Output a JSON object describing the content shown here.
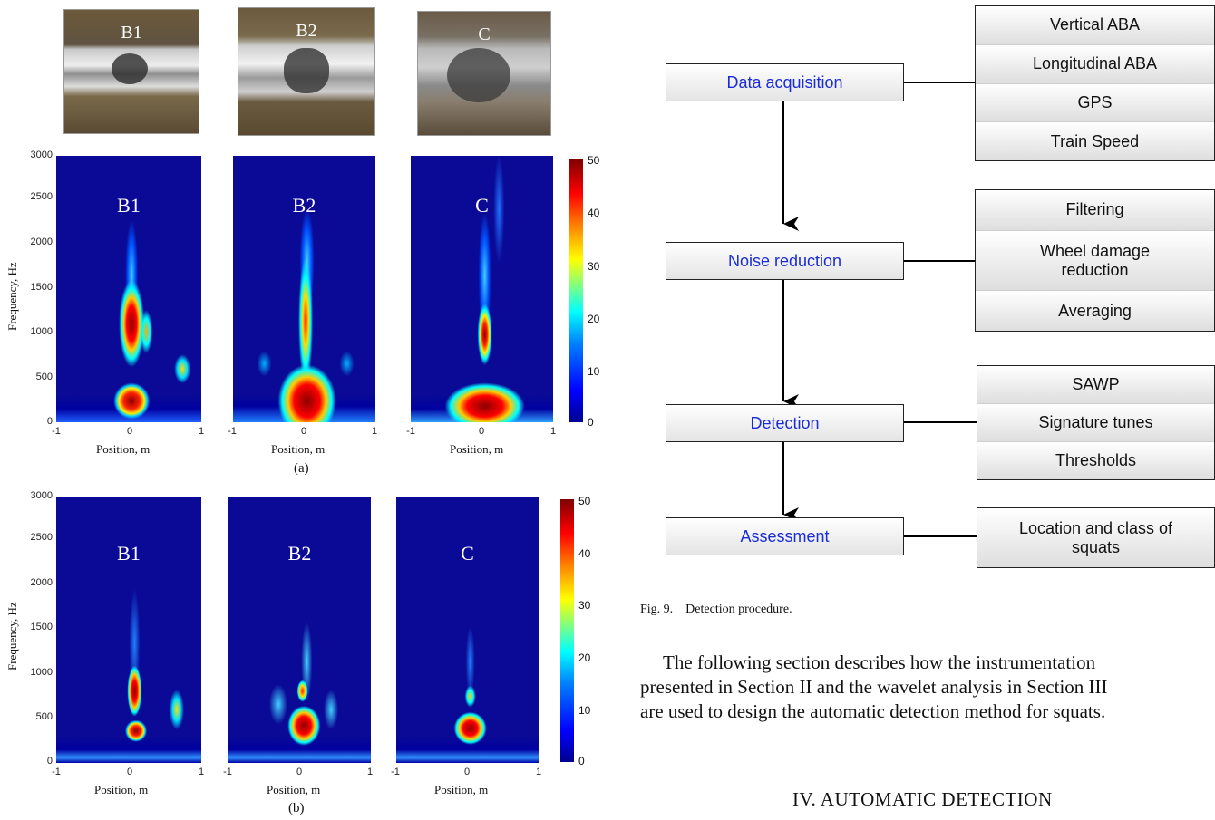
{
  "photos": [
    "B1",
    "B2",
    "C"
  ],
  "panels": {
    "a": {
      "labels": [
        "B1",
        "B2",
        "C"
      ],
      "colorbar_ticks": [
        "50",
        "40",
        "30",
        "20",
        "10",
        "0"
      ],
      "label": "(a)"
    },
    "b": {
      "labels": [
        "B1",
        "B2",
        "C"
      ],
      "colorbar_ticks": [
        "50",
        "40",
        "30",
        "20",
        "10",
        "0"
      ],
      "label": "(b)"
    }
  },
  "axes": {
    "ylabel": "Frequency, Hz",
    "xlabel": "Position, m",
    "yticks": [
      "3000",
      "2500",
      "2000",
      "1500",
      "1000",
      "500",
      "0"
    ],
    "xticks": [
      "-1",
      "0",
      "1"
    ]
  },
  "flow": {
    "steps": [
      {
        "label": "Data acquisition",
        "items": [
          "Vertical ABA",
          "Longitudinal ABA",
          "GPS",
          "Train Speed"
        ]
      },
      {
        "label": "Noise reduction",
        "items": [
          "Filtering",
          "Wheel damage reduction",
          "Averaging"
        ]
      },
      {
        "label": "Detection",
        "items": [
          "SAWP",
          "Signature tunes",
          "Thresholds"
        ]
      },
      {
        "label": "Assessment",
        "items": [
          "Location and class of squats"
        ]
      }
    ]
  },
  "caption": "Fig. 9. Detection procedure.",
  "body_lines": [
    "The following section describes how the instrumentation",
    "presented in Section II and the wavelet analysis in Section III",
    "are used to design the automatic detection method for squats."
  ],
  "heading": "IV. AUTOMATIC DETECTION"
}
